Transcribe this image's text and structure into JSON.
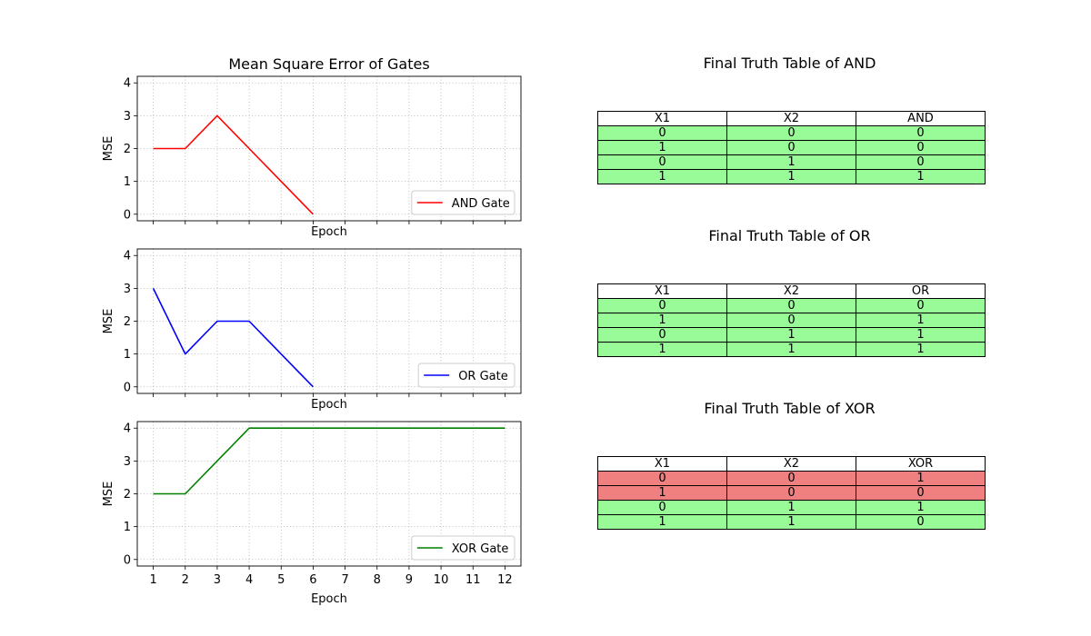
{
  "chart_data": [
    {
      "type": "line",
      "title": "Mean Square Error of Gates",
      "xlabel": "Epoch",
      "ylabel": "MSE",
      "x": [
        1,
        2,
        3,
        4,
        5,
        6
      ],
      "series": [
        {
          "name": "AND Gate",
          "values": [
            2,
            2,
            3,
            2,
            1,
            0
          ],
          "color": "#ff0000"
        }
      ],
      "xlim": [
        0.5,
        12.5
      ],
      "ylim": [
        -0.2,
        4.2
      ],
      "yticks": [
        "0",
        "1",
        "2",
        "3",
        "4"
      ],
      "grid": true,
      "legend": "lower-right"
    },
    {
      "type": "line",
      "title": "",
      "xlabel": "Epoch",
      "ylabel": "MSE",
      "x": [
        1,
        2,
        3,
        4,
        5,
        6
      ],
      "series": [
        {
          "name": "OR Gate",
          "values": [
            3,
            1,
            2,
            2,
            1,
            0
          ],
          "color": "#0000ff"
        }
      ],
      "xlim": [
        0.5,
        12.5
      ],
      "ylim": [
        -0.2,
        4.2
      ],
      "yticks": [
        "0",
        "1",
        "2",
        "3",
        "4"
      ],
      "grid": true,
      "legend": "lower-right"
    },
    {
      "type": "line",
      "title": "",
      "xlabel": "Epoch",
      "ylabel": "MSE",
      "x": [
        1,
        2,
        3,
        4,
        5,
        6,
        7,
        8,
        9,
        10,
        11,
        12
      ],
      "series": [
        {
          "name": "XOR Gate",
          "values": [
            2,
            2,
            3,
            4,
            4,
            4,
            4,
            4,
            4,
            4,
            4,
            4
          ],
          "color": "#008000"
        }
      ],
      "xlim": [
        0.5,
        12.5
      ],
      "ylim": [
        -0.2,
        4.2
      ],
      "xticks": [
        "1",
        "2",
        "3",
        "4",
        "5",
        "6",
        "7",
        "8",
        "9",
        "10",
        "11",
        "12"
      ],
      "yticks": [
        "0",
        "1",
        "2",
        "3",
        "4"
      ],
      "grid": true,
      "legend": "lower-right"
    },
    {
      "type": "table",
      "title": "Final Truth Table of AND",
      "columns": [
        "X1",
        "X2",
        "AND"
      ],
      "rows": [
        [
          "0",
          "0",
          "0"
        ],
        [
          "1",
          "0",
          "0"
        ],
        [
          "0",
          "1",
          "0"
        ],
        [
          "1",
          "1",
          "1"
        ]
      ],
      "row_status": [
        "correct",
        "correct",
        "correct",
        "correct"
      ]
    },
    {
      "type": "table",
      "title": "Final Truth Table of OR",
      "columns": [
        "X1",
        "X2",
        "OR"
      ],
      "rows": [
        [
          "0",
          "0",
          "0"
        ],
        [
          "1",
          "0",
          "1"
        ],
        [
          "0",
          "1",
          "1"
        ],
        [
          "1",
          "1",
          "1"
        ]
      ],
      "row_status": [
        "correct",
        "correct",
        "correct",
        "correct"
      ]
    },
    {
      "type": "table",
      "title": "Final Truth Table of XOR",
      "columns": [
        "X1",
        "X2",
        "XOR"
      ],
      "rows": [
        [
          "0",
          "0",
          "1"
        ],
        [
          "1",
          "0",
          "0"
        ],
        [
          "0",
          "1",
          "1"
        ],
        [
          "1",
          "1",
          "0"
        ]
      ],
      "row_status": [
        "wrong",
        "wrong",
        "correct",
        "correct"
      ]
    }
  ],
  "colors": {
    "correct": "#98fb98",
    "wrong": "#f08080",
    "grid": "#b0b0b0"
  }
}
